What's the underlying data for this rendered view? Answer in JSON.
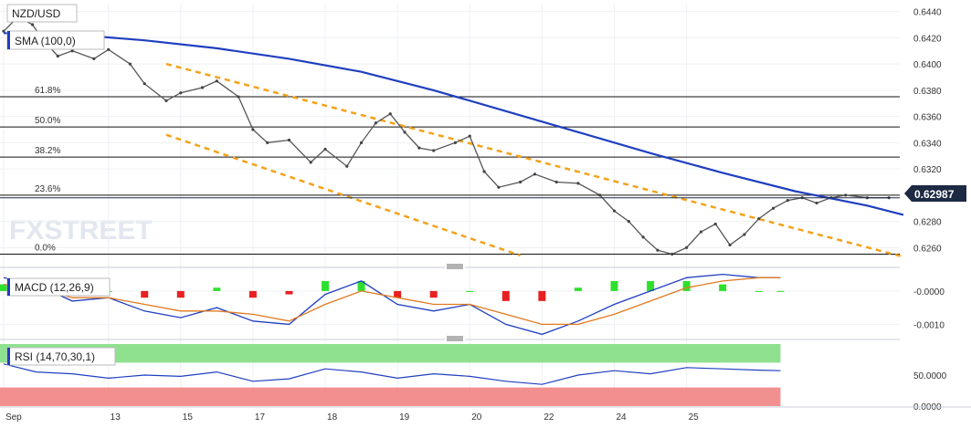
{
  "chart_data": {
    "type": "line",
    "symbol": "NZD/USD",
    "sma": {
      "label": "SMA (100,0)",
      "color": "#1f3fbf",
      "points": [
        [
          9.55,
          0.64235
        ],
        [
          10.5,
          0.64225
        ],
        [
          11.5,
          0.6418
        ],
        [
          12.5,
          0.6412
        ],
        [
          13.5,
          0.6404
        ],
        [
          14.5,
          0.6394
        ],
        [
          15.5,
          0.638
        ],
        [
          16.5,
          0.6364
        ],
        [
          17.5,
          0.6348
        ],
        [
          18.5,
          0.6332
        ],
        [
          19.5,
          0.6317
        ],
        [
          20.5,
          0.6303
        ],
        [
          21.5,
          0.6292
        ],
        [
          22.0,
          0.6285
        ]
      ]
    },
    "price": {
      "last_label": "0.62987",
      "points": [
        [
          9.55,
          0.6425
        ],
        [
          9.75,
          0.6436
        ],
        [
          9.95,
          0.643
        ],
        [
          10.1,
          0.6418
        ],
        [
          10.3,
          0.6406
        ],
        [
          10.5,
          0.641
        ],
        [
          10.8,
          0.6404
        ],
        [
          11.0,
          0.6411
        ],
        [
          11.3,
          0.64
        ],
        [
          11.5,
          0.6385
        ],
        [
          11.8,
          0.6372
        ],
        [
          12.0,
          0.6378
        ],
        [
          12.3,
          0.6382
        ],
        [
          12.5,
          0.6387
        ],
        [
          12.8,
          0.6375
        ],
        [
          13.0,
          0.635
        ],
        [
          13.2,
          0.634
        ],
        [
          13.5,
          0.6342
        ],
        [
          13.8,
          0.6325
        ],
        [
          14.0,
          0.6335
        ],
        [
          14.3,
          0.6322
        ],
        [
          14.5,
          0.634
        ],
        [
          14.7,
          0.6355
        ],
        [
          14.9,
          0.6362
        ],
        [
          15.1,
          0.6348
        ],
        [
          15.3,
          0.6336
        ],
        [
          15.5,
          0.6334
        ],
        [
          15.8,
          0.634
        ],
        [
          16.0,
          0.6345
        ],
        [
          16.2,
          0.6318
        ],
        [
          16.4,
          0.6306
        ],
        [
          16.7,
          0.631
        ],
        [
          16.9,
          0.6316
        ],
        [
          17.2,
          0.631
        ],
        [
          17.5,
          0.6309
        ],
        [
          17.8,
          0.63
        ],
        [
          18.0,
          0.6288
        ],
        [
          18.2,
          0.628
        ],
        [
          18.4,
          0.6268
        ],
        [
          18.6,
          0.6258
        ],
        [
          18.8,
          0.6255
        ],
        [
          19.0,
          0.626
        ],
        [
          19.2,
          0.6272
        ],
        [
          19.4,
          0.6278
        ],
        [
          19.6,
          0.6262
        ],
        [
          19.8,
          0.627
        ],
        [
          20.0,
          0.6282
        ],
        [
          20.2,
          0.629
        ],
        [
          20.4,
          0.6296
        ],
        [
          20.6,
          0.6298
        ],
        [
          20.8,
          0.6294
        ],
        [
          21.0,
          0.6298
        ],
        [
          21.2,
          0.63
        ],
        [
          21.5,
          0.6298
        ],
        [
          21.8,
          0.6298
        ]
      ]
    },
    "fibonacci": [
      {
        "label": "0.0%",
        "y": 0.6255
      },
      {
        "label": "23.6%",
        "y": 0.63
      },
      {
        "label": "38.2%",
        "y": 0.6329
      },
      {
        "label": "50.0%",
        "y": 0.6352
      },
      {
        "label": "61.8%",
        "y": 0.6375
      }
    ],
    "channel": {
      "color": "#f4a21a",
      "upper": [
        [
          11.8,
          0.64
        ],
        [
          22.0,
          0.6253
        ]
      ],
      "lower": [
        [
          11.8,
          0.6346
        ],
        [
          16.7,
          0.6254
        ]
      ]
    },
    "y_ticks": [
      "0.6440",
      "0.6420",
      "0.6400",
      "0.6380",
      "0.6360",
      "0.6340",
      "0.6320",
      "0.6280",
      "0.6260"
    ],
    "y_range": [
      0.6247,
      0.6446
    ],
    "x_ticks": [
      {
        "label": "Sep",
        "x": 9.55
      },
      {
        "label": "13",
        "x": 11.0
      },
      {
        "label": "15",
        "x": 12.0
      },
      {
        "label": "17",
        "x": 13.0
      },
      {
        "label": "18",
        "x": 14.0
      },
      {
        "label": "19",
        "x": 15.0
      },
      {
        "label": "20",
        "x": 16.0
      },
      {
        "label": "22",
        "x": 17.0
      },
      {
        "label": "24",
        "x": 18.0
      },
      {
        "label": "25",
        "x": 19.0
      }
    ],
    "x_range": [
      9.5,
      21.95
    ],
    "watermark": "FXSTREET",
    "macd": {
      "label": "MACD (12,26,9)",
      "y_ticks": [
        "-0.0000",
        "-0.0010"
      ],
      "y_range": [
        -0.0014,
        0.0006
      ],
      "macd_line": [
        [
          9.55,
          0.0004
        ],
        [
          10.0,
          0.0002
        ],
        [
          10.5,
          -0.0003
        ],
        [
          11.0,
          -0.0002
        ],
        [
          11.5,
          -0.0006
        ],
        [
          12.0,
          -0.0008
        ],
        [
          12.5,
          -0.0005
        ],
        [
          13.0,
          -0.0009
        ],
        [
          13.5,
          -0.001
        ],
        [
          14.0,
          -0.0001
        ],
        [
          14.5,
          0.0003
        ],
        [
          15.0,
          -0.0004
        ],
        [
          15.5,
          -0.0006
        ],
        [
          16.0,
          -0.0004
        ],
        [
          16.5,
          -0.001
        ],
        [
          17.0,
          -0.0013
        ],
        [
          17.5,
          -0.0009
        ],
        [
          18.0,
          -0.0004
        ],
        [
          18.5,
          0.0
        ],
        [
          19.0,
          0.0004
        ],
        [
          19.5,
          0.0005
        ],
        [
          20.0,
          0.0004
        ],
        [
          20.3,
          0.0004
        ]
      ],
      "signal_line": [
        [
          9.55,
          0.0002
        ],
        [
          10.0,
          0.0001
        ],
        [
          10.5,
          -0.0002
        ],
        [
          11.0,
          -0.0002
        ],
        [
          11.5,
          -0.0004
        ],
        [
          12.0,
          -0.0006
        ],
        [
          12.5,
          -0.0006
        ],
        [
          13.0,
          -0.0007
        ],
        [
          13.5,
          -0.0009
        ],
        [
          14.0,
          -0.0004
        ],
        [
          14.5,
          0.0
        ],
        [
          15.0,
          -0.0002
        ],
        [
          15.5,
          -0.0004
        ],
        [
          16.0,
          -0.0004
        ],
        [
          16.5,
          -0.0007
        ],
        [
          17.0,
          -0.001
        ],
        [
          17.5,
          -0.001
        ],
        [
          18.0,
          -0.0007
        ],
        [
          18.5,
          -0.0003
        ],
        [
          19.0,
          0.0001
        ],
        [
          19.5,
          0.0003
        ],
        [
          20.0,
          0.0004
        ],
        [
          20.3,
          0.0004
        ]
      ]
    },
    "rsi": {
      "label": "RSI (14,70,30,1)",
      "y_ticks": [
        "50.0000",
        "0.0000"
      ],
      "y_range": [
        0,
        100
      ],
      "overbought": 70,
      "oversold": 30,
      "points": [
        [
          9.55,
          68
        ],
        [
          10.0,
          55
        ],
        [
          10.5,
          52
        ],
        [
          11.0,
          45
        ],
        [
          11.5,
          50
        ],
        [
          12.0,
          48
        ],
        [
          12.5,
          55
        ],
        [
          13.0,
          40
        ],
        [
          13.5,
          44
        ],
        [
          14.0,
          60
        ],
        [
          14.5,
          55
        ],
        [
          15.0,
          45
        ],
        [
          15.5,
          52
        ],
        [
          16.0,
          48
        ],
        [
          16.5,
          40
        ],
        [
          17.0,
          35
        ],
        [
          17.5,
          50
        ],
        [
          18.0,
          57
        ],
        [
          18.5,
          52
        ],
        [
          19.0,
          62
        ],
        [
          19.5,
          60
        ],
        [
          20.0,
          58
        ],
        [
          20.3,
          57
        ]
      ]
    }
  }
}
